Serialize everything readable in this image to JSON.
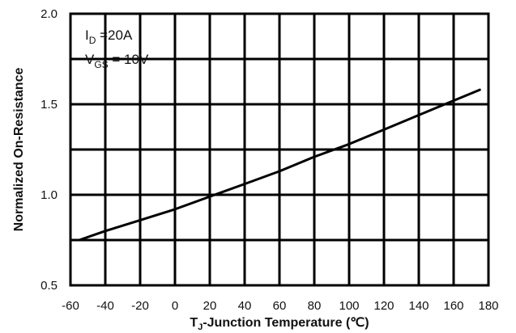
{
  "chart_data": {
    "type": "line",
    "title": "",
    "xlabel": {
      "main": "T",
      "sub": "J",
      "rest": "-Junction Temperature (℃)"
    },
    "ylabel": "Normalized On-Resistance",
    "xlim": [
      -60,
      180
    ],
    "ylim": [
      0.5,
      2.0
    ],
    "x_ticks": [
      -60,
      -40,
      -20,
      0,
      20,
      40,
      60,
      80,
      100,
      120,
      140,
      160,
      180
    ],
    "y_ticks": [
      0.5,
      1.0,
      1.5,
      2.0
    ],
    "x_tick_labels": [
      "-60",
      "-40",
      "-20",
      "0",
      "20",
      "40",
      "60",
      "80",
      "100",
      "120",
      "140",
      "160",
      "180"
    ],
    "y_tick_labels": [
      "0.5",
      "1.0",
      "1.5",
      "2.0"
    ],
    "grid": true,
    "annotations": [
      {
        "main": "I",
        "sub": "D",
        "rest": " =20A"
      },
      {
        "main": "V",
        "sub": "GS",
        "rest": " = 10V"
      }
    ],
    "series": [
      {
        "x": [
          -55,
          -40,
          -20,
          0,
          20,
          40,
          60,
          80,
          100,
          120,
          140,
          160,
          175
        ],
        "y": [
          0.75,
          0.8,
          0.86,
          0.92,
          0.99,
          1.06,
          1.13,
          1.21,
          1.28,
          1.36,
          1.44,
          1.52,
          1.58
        ]
      }
    ]
  }
}
